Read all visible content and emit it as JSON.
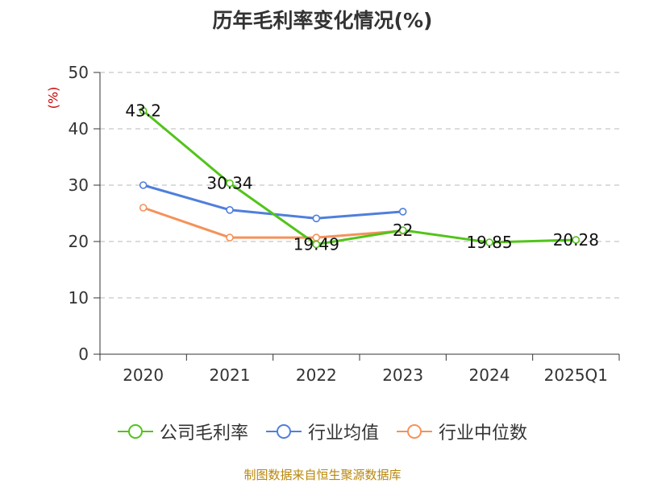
{
  "chart_data": {
    "type": "line",
    "title": "历年毛利率变化情况(%)",
    "ylabel": "(%)",
    "categories": [
      "2020",
      "2021",
      "2022",
      "2023",
      "2024",
      "2025Q1"
    ],
    "ylim": [
      0,
      50
    ],
    "yticks": [
      "0",
      "10",
      "20",
      "30",
      "40",
      "50"
    ],
    "grid": true,
    "legend_position": "bottom",
    "series": [
      {
        "name": "公司毛利率",
        "color": "#52c41a",
        "values": [
          43.2,
          30.34,
          19.49,
          22,
          19.85,
          20.28
        ],
        "labels": [
          "43.2",
          "30.34",
          "19.49",
          "22",
          "19.85",
          "20.28"
        ]
      },
      {
        "name": "行业均值",
        "color": "#4f7fdc",
        "values": [
          30.0,
          25.6,
          24.1,
          25.3,
          null,
          null
        ]
      },
      {
        "name": "行业中位数",
        "color": "#f4925a",
        "values": [
          26.0,
          20.7,
          20.7,
          21.9,
          null,
          null
        ]
      }
    ],
    "source": "制图数据来自恒生聚源数据库"
  }
}
